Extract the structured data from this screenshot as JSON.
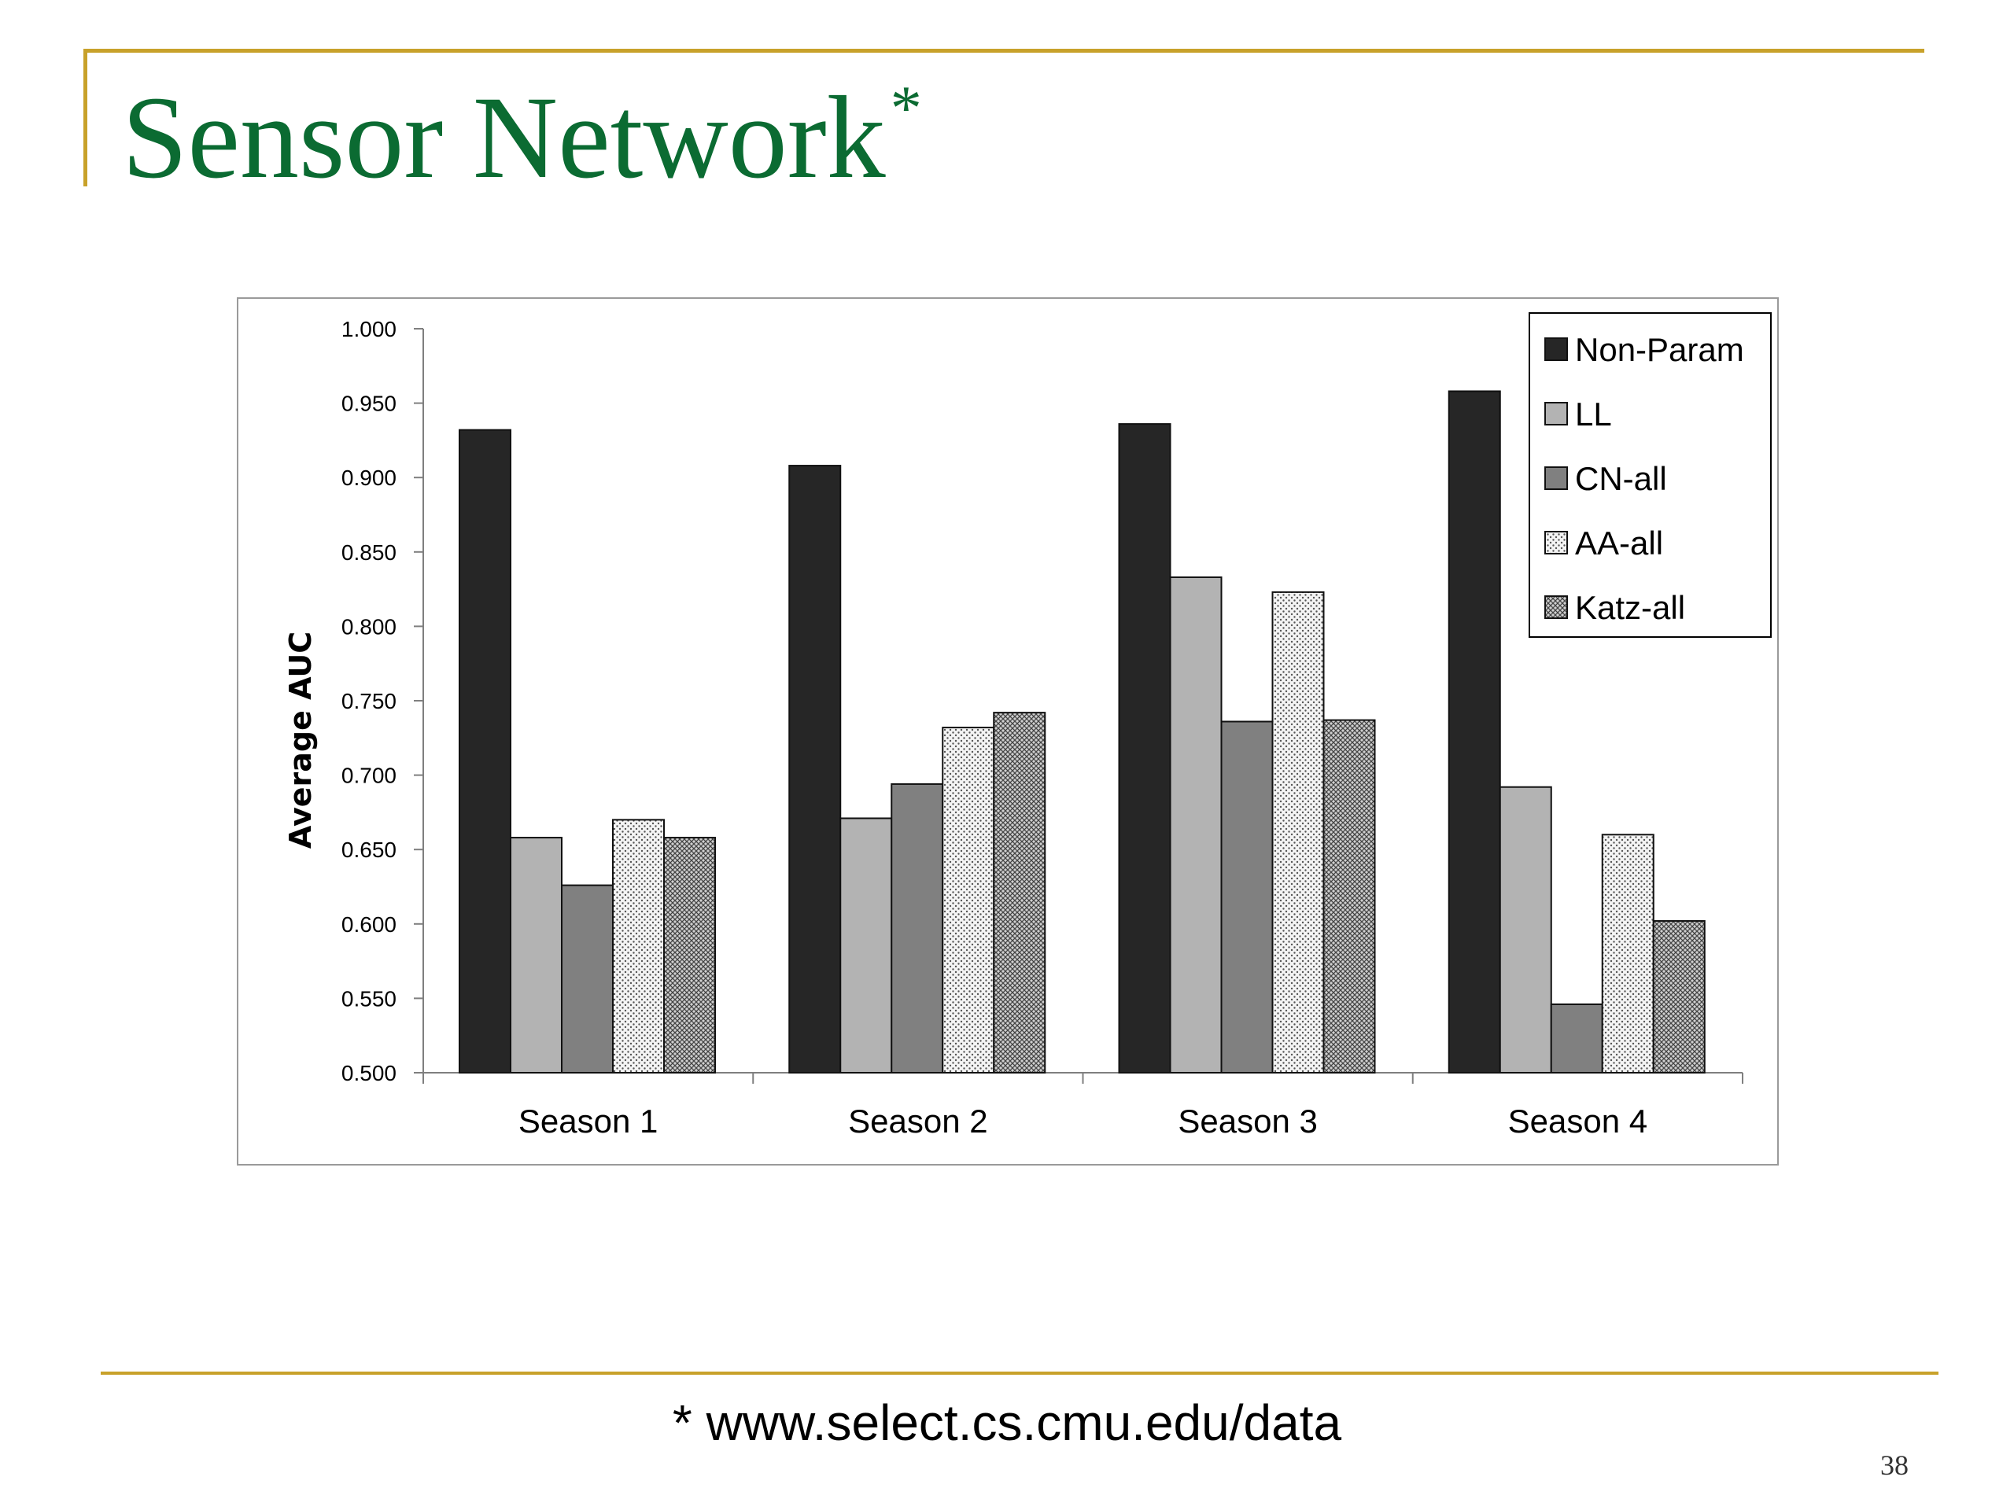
{
  "slide": {
    "title": "Sensor Network",
    "title_marker": "*",
    "footnote": "* www.select.cs.cmu.edu/data",
    "page_number": "38",
    "accent_color": "#c8a12a",
    "title_color": "#0b6b32"
  },
  "chart_data": {
    "type": "bar",
    "title": "",
    "xlabel": "",
    "ylabel": "Average AUC",
    "ylim": [
      0.5,
      1.0
    ],
    "yticks": [
      "0.500",
      "0.550",
      "0.600",
      "0.650",
      "0.700",
      "0.750",
      "0.800",
      "0.850",
      "0.900",
      "0.950",
      "1.000"
    ],
    "categories": [
      "Season 1",
      "Season 2",
      "Season 3",
      "Season 4"
    ],
    "legend_position": "top-right",
    "grid": false,
    "series": [
      {
        "name": "Non-Param",
        "fill": "solid",
        "color": "#262626",
        "values": [
          0.932,
          0.908,
          0.936,
          0.958
        ]
      },
      {
        "name": "LL",
        "fill": "solid",
        "color": "#b3b3b3",
        "values": [
          0.658,
          0.671,
          0.833,
          0.692
        ]
      },
      {
        "name": "CN-all",
        "fill": "solid",
        "color": "#808080",
        "values": [
          0.626,
          0.694,
          0.736,
          0.546
        ]
      },
      {
        "name": "AA-all",
        "fill": "dots",
        "color": "#f2f2f2",
        "values": [
          0.67,
          0.732,
          0.823,
          0.66
        ]
      },
      {
        "name": "Katz-all",
        "fill": "cross",
        "color": "#bdbdbd",
        "values": [
          0.658,
          0.742,
          0.737,
          0.602
        ]
      }
    ]
  }
}
